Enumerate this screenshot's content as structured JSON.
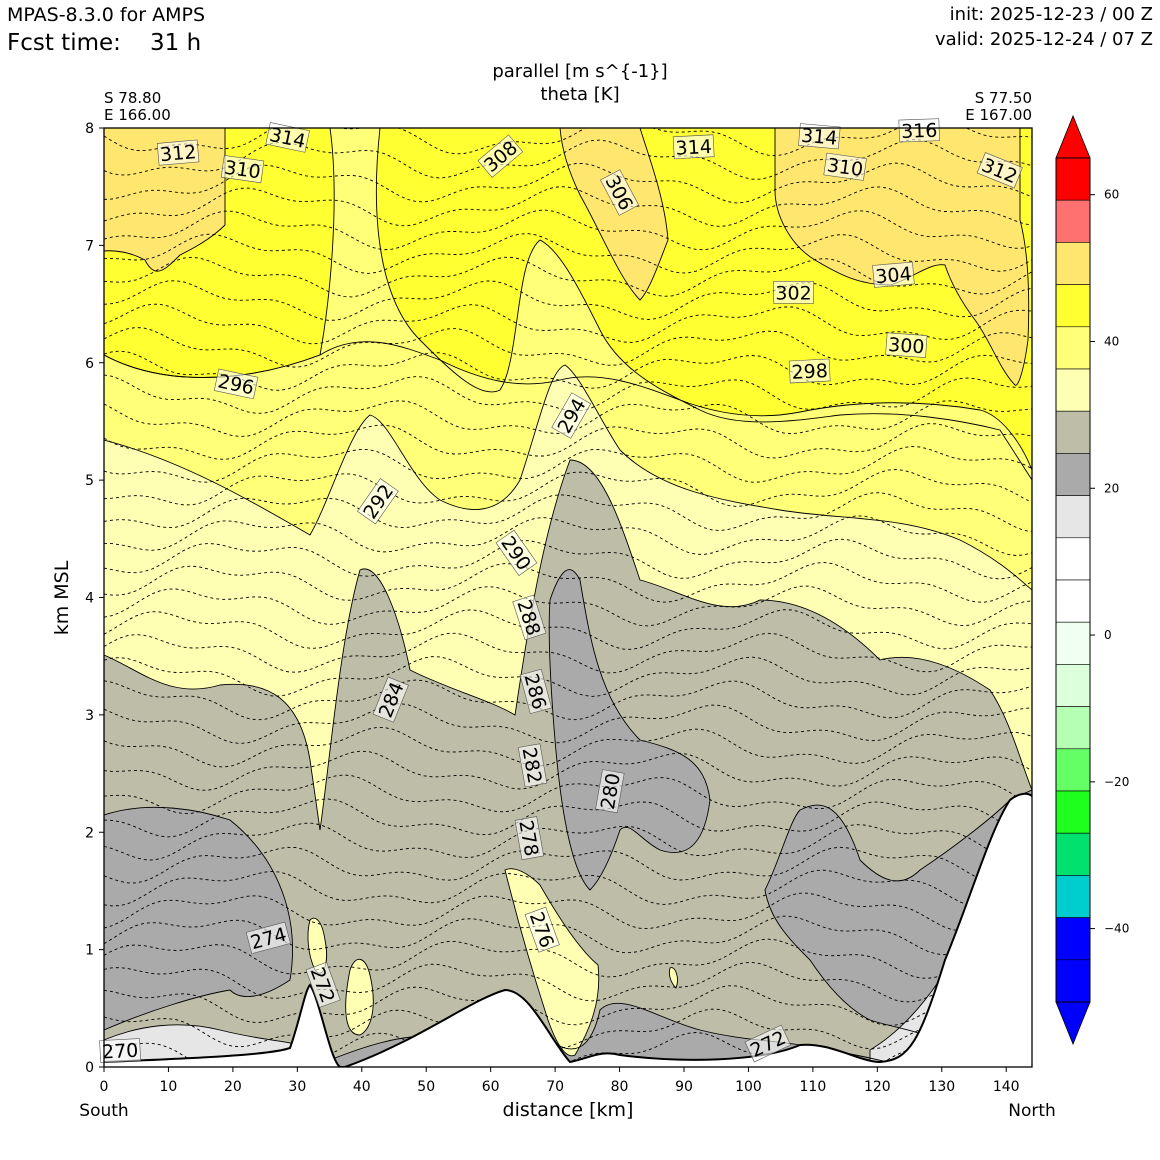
{
  "header": {
    "model": "MPAS-8.3.0 for AMPS",
    "fcst_label": "Fcst time:",
    "fcst_value": "31 h",
    "init": "init: 2025-12-23 / 00 Z",
    "valid": "valid: 2025-12-24 / 07 Z"
  },
  "chart_data": {
    "type": "contour",
    "title": "parallel [m s^{-1}]",
    "subtitle": "theta [K]",
    "xlabel": "distance [km]",
    "ylabel": "km MSL",
    "xlim": [
      0,
      144
    ],
    "ylim": [
      0,
      8
    ],
    "x_ticks": [
      0,
      10,
      20,
      30,
      40,
      50,
      60,
      70,
      80,
      90,
      100,
      110,
      120,
      130,
      140
    ],
    "y_ticks": [
      0,
      1,
      2,
      3,
      4,
      5,
      6,
      7,
      8
    ],
    "left_end": {
      "lat": "S 78.80",
      "lon": "E 166.00",
      "label": "South"
    },
    "right_end": {
      "lat": "S 77.50",
      "lon": "E 167.00",
      "label": "North"
    },
    "colorbar": {
      "ticks": [
        60,
        40,
        20,
        0,
        -20,
        -40
      ],
      "tick_labels": [
        "60",
        "40",
        "20",
        "0",
        "−20",
        "−40"
      ],
      "colors_top_down": [
        "#ff0000",
        "#ff7070",
        "#ffe66e",
        "#ffff32",
        "#ffff78",
        "#ffffb4",
        "#bebea8",
        "#aaaaaa",
        "#e6e6e6",
        "#ffffff",
        "#ffffff",
        "#f0fff0",
        "#dcffdc",
        "#b4ffb4",
        "#64ff64",
        "#1eff1e",
        "#00e16e",
        "#00cdcd",
        "#0000ff",
        "#0000ff"
      ],
      "extend_top_color": "#ff0000",
      "extend_bottom_color": "#0000ff"
    },
    "theta_labels": [
      {
        "v": "312",
        "x": 11.5,
        "y": 7.79,
        "rot": -5
      },
      {
        "v": "314",
        "x": 28.5,
        "y": 7.92,
        "rot": 12
      },
      {
        "v": "310",
        "x": 21.5,
        "y": 7.65,
        "rot": 8
      },
      {
        "v": "308",
        "x": 61.5,
        "y": 7.76,
        "rot": -40
      },
      {
        "v": "306",
        "x": 80,
        "y": 7.45,
        "rot": 62
      },
      {
        "v": "314",
        "x": 91.5,
        "y": 7.84,
        "rot": -3
      },
      {
        "v": "314",
        "x": 111,
        "y": 7.93,
        "rot": 5
      },
      {
        "v": "316",
        "x": 126.5,
        "y": 7.98,
        "rot": -2
      },
      {
        "v": "310",
        "x": 115,
        "y": 7.67,
        "rot": 8
      },
      {
        "v": "312",
        "x": 139,
        "y": 7.64,
        "rot": 22
      },
      {
        "v": "304",
        "x": 122.5,
        "y": 6.75,
        "rot": -5
      },
      {
        "v": "302",
        "x": 107,
        "y": 6.6,
        "rot": 0
      },
      {
        "v": "300",
        "x": 124.5,
        "y": 6.15,
        "rot": 4
      },
      {
        "v": "298",
        "x": 109.5,
        "y": 5.93,
        "rot": -3
      },
      {
        "v": "296",
        "x": 20.5,
        "y": 5.82,
        "rot": 12
      },
      {
        "v": "294",
        "x": 72.5,
        "y": 5.55,
        "rot": -60
      },
      {
        "v": "292",
        "x": 42.5,
        "y": 4.82,
        "rot": -55
      },
      {
        "v": "290",
        "x": 64,
        "y": 4.38,
        "rot": 55
      },
      {
        "v": "288",
        "x": 66,
        "y": 3.83,
        "rot": 72
      },
      {
        "v": "286",
        "x": 67,
        "y": 3.2,
        "rot": 75
      },
      {
        "v": "284",
        "x": 44.5,
        "y": 3.13,
        "rot": -68
      },
      {
        "v": "282",
        "x": 66.5,
        "y": 2.57,
        "rot": 80
      },
      {
        "v": "280",
        "x": 78.5,
        "y": 2.35,
        "rot": -80
      },
      {
        "v": "278",
        "x": 66,
        "y": 1.95,
        "rot": 80
      },
      {
        "v": "276",
        "x": 68,
        "y": 1.17,
        "rot": 70
      },
      {
        "v": "274",
        "x": 25.5,
        "y": 1.1,
        "rot": -15
      },
      {
        "v": "272",
        "x": 34,
        "y": 0.7,
        "rot": 70
      },
      {
        "v": "272",
        "x": 103,
        "y": 0.2,
        "rot": -25
      },
      {
        "v": "270",
        "x": 2.5,
        "y": 0.14,
        "rot": -3
      }
    ]
  }
}
